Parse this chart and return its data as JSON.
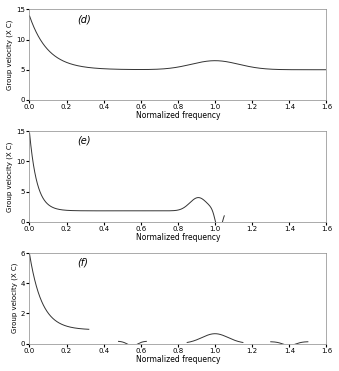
{
  "title_d": "(d)",
  "title_e": "(e)",
  "title_f": "(f)",
  "ylabel": "Group velocity (X C)",
  "xlabel": "Normalized frequency",
  "xlim": [
    0,
    1.6
  ],
  "ylim_d": [
    0,
    15
  ],
  "ylim_e": [
    0,
    15
  ],
  "ylim_f": [
    0,
    6
  ],
  "yticks_d": [
    0,
    5,
    10,
    15
  ],
  "yticks_e": [
    0,
    5,
    10,
    15
  ],
  "yticks_f": [
    0,
    2,
    4,
    6
  ],
  "xticks": [
    0,
    0.2,
    0.4,
    0.6,
    0.8,
    1.0,
    1.2,
    1.4,
    1.6
  ],
  "line_color": "#333333",
  "bg_color": "#ffffff",
  "figsize": [
    3.39,
    3.71
  ],
  "dpi": 100
}
